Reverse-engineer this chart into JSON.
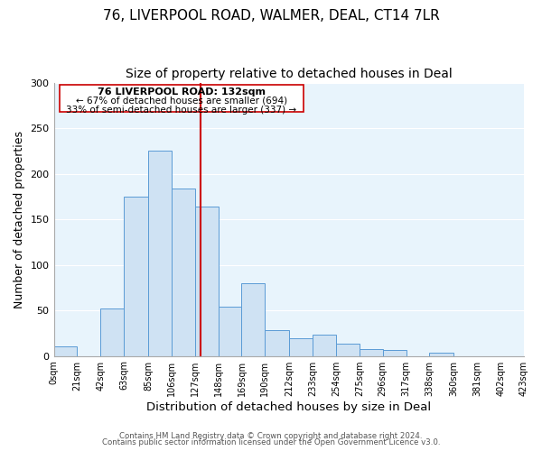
{
  "title": "76, LIVERPOOL ROAD, WALMER, DEAL, CT14 7LR",
  "subtitle": "Size of property relative to detached houses in Deal",
  "xlabel": "Distribution of detached houses by size in Deal",
  "ylabel": "Number of detached properties",
  "bar_left_edges": [
    0,
    21,
    42,
    63,
    85,
    106,
    127,
    148,
    169,
    190,
    212,
    233,
    254,
    275,
    296,
    317,
    338,
    360,
    381,
    402
  ],
  "bar_heights": [
    10,
    0,
    52,
    175,
    225,
    184,
    164,
    54,
    80,
    28,
    19,
    23,
    13,
    8,
    7,
    0,
    4,
    0,
    0,
    0
  ],
  "bar_widths": [
    21,
    21,
    21,
    22,
    21,
    21,
    21,
    21,
    21,
    22,
    21,
    21,
    21,
    21,
    21,
    21,
    22,
    21,
    21,
    21
  ],
  "tick_labels": [
    "0sqm",
    "21sqm",
    "42sqm",
    "63sqm",
    "85sqm",
    "106sqm",
    "127sqm",
    "148sqm",
    "169sqm",
    "190sqm",
    "212sqm",
    "233sqm",
    "254sqm",
    "275sqm",
    "296sqm",
    "317sqm",
    "338sqm",
    "360sqm",
    "381sqm",
    "402sqm",
    "423sqm"
  ],
  "tick_positions": [
    0,
    21,
    42,
    63,
    85,
    106,
    127,
    148,
    169,
    190,
    212,
    233,
    254,
    275,
    296,
    317,
    338,
    360,
    381,
    402,
    423
  ],
  "bar_color": "#cfe2f3",
  "bar_edge_color": "#5b9bd5",
  "property_line_x": 132,
  "property_line_color": "#cc0000",
  "ylim": [
    0,
    300
  ],
  "xlim": [
    0,
    423
  ],
  "annotation_title": "76 LIVERPOOL ROAD: 132sqm",
  "annotation_line1": "← 67% of detached houses are smaller (694)",
  "annotation_line2": "33% of semi-detached houses are larger (337) →",
  "footer_line1": "Contains HM Land Registry data © Crown copyright and database right 2024.",
  "footer_line2": "Contains public sector information licensed under the Open Government Licence v3.0.",
  "background_color": "#e8f4fc",
  "title_fontsize": 11,
  "subtitle_fontsize": 10,
  "xlabel_fontsize": 9.5,
  "ylabel_fontsize": 9
}
